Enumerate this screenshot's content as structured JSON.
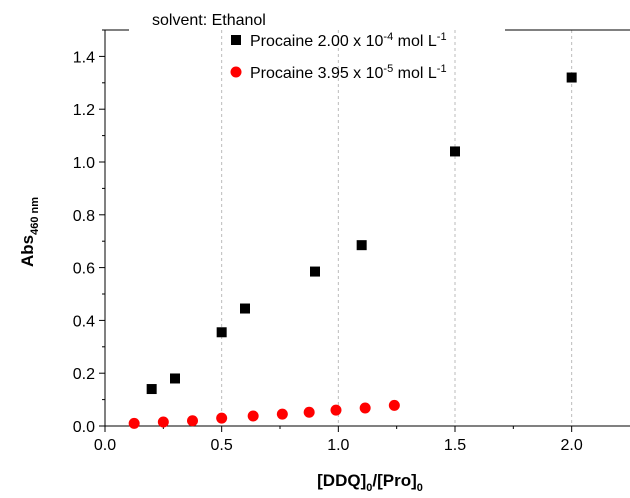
{
  "chart_data": {
    "type": "scatter",
    "annotation": "solvent: Ethanol",
    "xlabel": {
      "main": "[DDQ]",
      "sub1": "0",
      "mid": "/[Pro]",
      "sub2": "0"
    },
    "ylabel": {
      "main": "Abs",
      "sub": "460 nm"
    },
    "xlim": [
      0,
      2.25
    ],
    "ylim": [
      0,
      1.5
    ],
    "x_ticks": [
      "0.0",
      "0.5",
      "1.0",
      "1.5",
      "2.0"
    ],
    "y_ticks": [
      "0.0",
      "0.2",
      "0.4",
      "0.6",
      "0.8",
      "1.0",
      "1.2",
      "1.4"
    ],
    "grid": "vertical dashed lines at major x ticks",
    "legend_position": "top-center",
    "series": [
      {
        "name": "Procaine 2.00 x 10-4 mol L-1",
        "label_main": "Procaine 2.00 x 10",
        "label_exp": "-4",
        "label_unit": " mol L",
        "label_unit_exp": "-1",
        "marker": "square",
        "color": "#000000",
        "x": [
          0.2,
          0.3,
          0.5,
          0.6,
          0.9,
          1.1,
          1.5,
          2.0
        ],
        "y": [
          0.14,
          0.18,
          0.355,
          0.445,
          0.585,
          0.685,
          1.04,
          1.32
        ]
      },
      {
        "name": "Procaine 3.95 x 10-5 mol L-1",
        "label_main": "Procaine 3.95 x 10",
        "label_exp": "-5",
        "label_unit": " mol L",
        "label_unit_exp": "-1",
        "marker": "circle",
        "color": "#ff0000",
        "x": [
          0.125,
          0.25,
          0.375,
          0.5,
          0.635,
          0.76,
          0.875,
          0.99,
          1.115,
          1.24
        ],
        "y": [
          0.01,
          0.015,
          0.02,
          0.03,
          0.038,
          0.045,
          0.052,
          0.06,
          0.068,
          0.078
        ]
      }
    ]
  }
}
